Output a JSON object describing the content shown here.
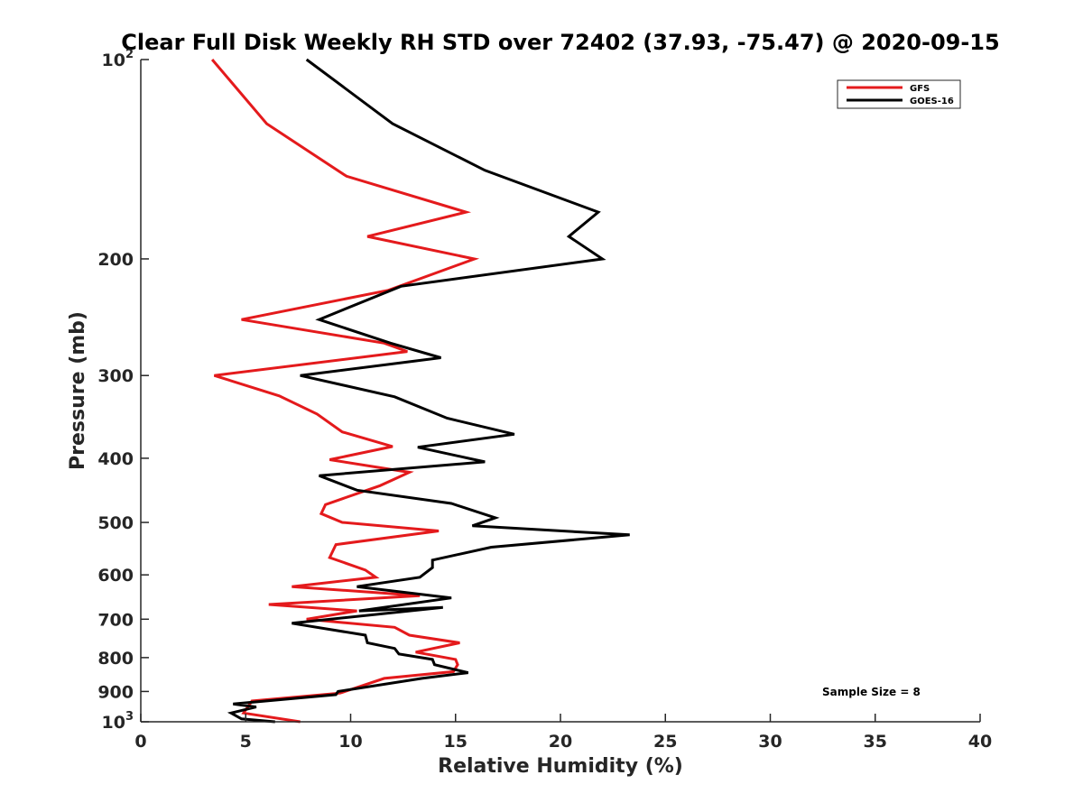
{
  "chart_data": {
    "type": "line",
    "title": "Clear Full Disk Weekly RH STD over 72402 (37.93, -75.47) @ 2020-09-15",
    "xlabel": "Relative Humidity (%)",
    "ylabel": "Pressure (mb)",
    "xlim": [
      0,
      40
    ],
    "ylim": [
      100,
      1000
    ],
    "yscale": "log",
    "y_reversed": true,
    "grid": false,
    "legend_position": "top-right",
    "x_ticks": [
      0,
      5,
      10,
      15,
      20,
      25,
      30,
      35,
      40
    ],
    "x_tick_labels": [
      "0",
      "5",
      "10",
      "15",
      "20",
      "25",
      "30",
      "35",
      "40"
    ],
    "y_ticks": [
      100,
      200,
      300,
      400,
      500,
      600,
      700,
      800,
      900,
      1000
    ],
    "y_tick_labels": [
      {
        "base": "10",
        "exp": "2"
      },
      {
        "text": "200"
      },
      {
        "text": "300"
      },
      {
        "text": "400"
      },
      {
        "text": "500"
      },
      {
        "text": "600"
      },
      {
        "text": "700"
      },
      {
        "text": "800"
      },
      {
        "text": "900"
      },
      {
        "base": "10",
        "exp": "3"
      }
    ],
    "annotation": "Sample Size = 8",
    "series": [
      {
        "name": "GFS",
        "color": "#e41a1c",
        "points": [
          [
            3.4,
            100
          ],
          [
            6.0,
            125
          ],
          [
            9.8,
            150
          ],
          [
            15.5,
            170
          ],
          [
            10.8,
            185
          ],
          [
            15.9,
            200
          ],
          [
            11.8,
            223
          ],
          [
            4.8,
            247
          ],
          [
            11.6,
            268
          ],
          [
            12.7,
            276
          ],
          [
            3.5,
            300
          ],
          [
            6.6,
            322
          ],
          [
            8.4,
            343
          ],
          [
            9.6,
            365
          ],
          [
            12.0,
            384
          ],
          [
            9.0,
            402
          ],
          [
            12.8,
            420
          ],
          [
            11.4,
            440
          ],
          [
            8.8,
            470
          ],
          [
            8.6,
            485
          ],
          [
            9.6,
            500
          ],
          [
            14.2,
            515
          ],
          [
            9.3,
            540
          ],
          [
            9.0,
            565
          ],
          [
            10.7,
            590
          ],
          [
            11.2,
            605
          ],
          [
            7.2,
            625
          ],
          [
            13.3,
            645
          ],
          [
            6.1,
            665
          ],
          [
            10.3,
            680
          ],
          [
            7.9,
            700
          ],
          [
            12.1,
            720
          ],
          [
            12.8,
            740
          ],
          [
            15.2,
            760
          ],
          [
            13.1,
            785
          ],
          [
            15.0,
            805
          ],
          [
            15.1,
            820
          ],
          [
            14.9,
            840
          ],
          [
            11.6,
            860
          ],
          [
            9.5,
            905
          ],
          [
            5.3,
            930
          ],
          [
            4.9,
            970
          ],
          [
            7.6,
            1000
          ]
        ]
      },
      {
        "name": "GOES-16",
        "color": "#000000",
        "points": [
          [
            7.9,
            100
          ],
          [
            12.0,
            125
          ],
          [
            16.4,
            147
          ],
          [
            21.8,
            170
          ],
          [
            20.4,
            185
          ],
          [
            22.0,
            200
          ],
          [
            12.4,
            220
          ],
          [
            8.5,
            247
          ],
          [
            11.9,
            268
          ],
          [
            14.3,
            282
          ],
          [
            7.6,
            300
          ],
          [
            12.1,
            323
          ],
          [
            14.6,
            348
          ],
          [
            17.8,
            368
          ],
          [
            13.2,
            385
          ],
          [
            16.4,
            405
          ],
          [
            8.5,
            425
          ],
          [
            10.3,
            447
          ],
          [
            14.8,
            468
          ],
          [
            16.9,
            492
          ],
          [
            15.8,
            506
          ],
          [
            23.3,
            522
          ],
          [
            16.7,
            545
          ],
          [
            13.9,
            570
          ],
          [
            13.9,
            585
          ],
          [
            13.3,
            605
          ],
          [
            10.3,
            625
          ],
          [
            14.8,
            650
          ],
          [
            10.4,
            680
          ],
          [
            14.4,
            672
          ],
          [
            7.2,
            710
          ],
          [
            10.7,
            740
          ],
          [
            10.8,
            760
          ],
          [
            12.1,
            775
          ],
          [
            12.3,
            790
          ],
          [
            13.9,
            805
          ],
          [
            14.0,
            820
          ],
          [
            15.6,
            843
          ],
          [
            13.4,
            860
          ],
          [
            9.4,
            900
          ],
          [
            9.3,
            910
          ],
          [
            4.4,
            940
          ],
          [
            5.5,
            950
          ],
          [
            4.3,
            970
          ],
          [
            4.8,
            990
          ],
          [
            6.4,
            1000
          ]
        ]
      }
    ]
  }
}
